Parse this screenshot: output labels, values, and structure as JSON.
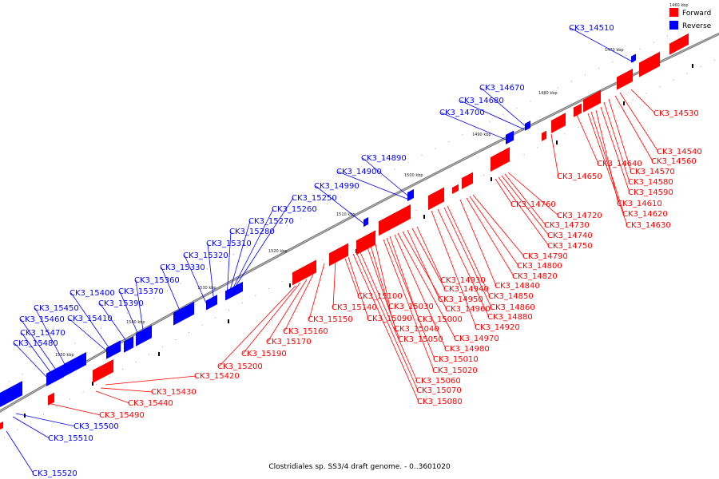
{
  "caption": "Clostridiales sp. SS3/4 draft genome. - 0..3601020",
  "legend": {
    "corner_label": "1460 kbp",
    "items": [
      {
        "label": "Forward",
        "color": "#ff0000"
      },
      {
        "label": "Reverse",
        "color": "#0000ff"
      }
    ]
  },
  "colors": {
    "forward": "#ff0000",
    "reverse": "#0000ff",
    "backbone": "#777777"
  },
  "ticks": [
    "1470 kbp",
    "1480 kbp",
    "1490 kbp",
    "1500 kbp",
    "1510 kbp",
    "1520 kbp",
    "1530 kbp",
    "1540 kbp",
    "1550 kbp"
  ],
  "genes_reverse": [
    "CK3_14510",
    "CK3_14670",
    "CK3_14680",
    "CK3_14700",
    "CK3_14890",
    "CK3_14900",
    "CK3_14990",
    "CK3_15250",
    "CK3_15260",
    "CK3_15270",
    "CK3_15280",
    "CK3_15310",
    "CK3_15320",
    "CK3_15330",
    "CK3_15360",
    "CK3_15370",
    "CK3_15390",
    "CK3_15400",
    "CK3_15410",
    "CK3_15450",
    "CK3_15460",
    "CK3_15470",
    "CK3_15480",
    "CK3_15500",
    "CK3_15510",
    "CK3_15520"
  ],
  "genes_forward": [
    "CK3_14530",
    "CK3_14540",
    "CK3_14560",
    "CK3_14570",
    "CK3_14580",
    "CK3_14590",
    "CK3_14610",
    "CK3_14620",
    "CK3_14630",
    "CK3_14640",
    "CK3_14650",
    "CK3_14720",
    "CK3_14730",
    "CK3_14740",
    "CK3_14750",
    "CK3_14760",
    "CK3_14790",
    "CK3_14800",
    "CK3_14820",
    "CK3_14840",
    "CK3_14850",
    "CK3_14860",
    "CK3_14880",
    "CK3_14920",
    "CK3_14930",
    "CK3_14940",
    "CK3_14950",
    "CK3_14960",
    "CK3_14970",
    "CK3_14980",
    "CK3_15000",
    "CK3_15010",
    "CK3_15020",
    "CK3_15030",
    "CK3_15040",
    "CK3_15050",
    "CK3_15060",
    "CK3_15070",
    "CK3_15080",
    "CK3_15090",
    "CK3_15100",
    "CK3_15140",
    "CK3_15150",
    "CK3_15160",
    "CK3_15170",
    "CK3_15190",
    "CK3_15200",
    "CK3_15420",
    "CK3_15430",
    "CK3_15440",
    "CK3_15490"
  ]
}
